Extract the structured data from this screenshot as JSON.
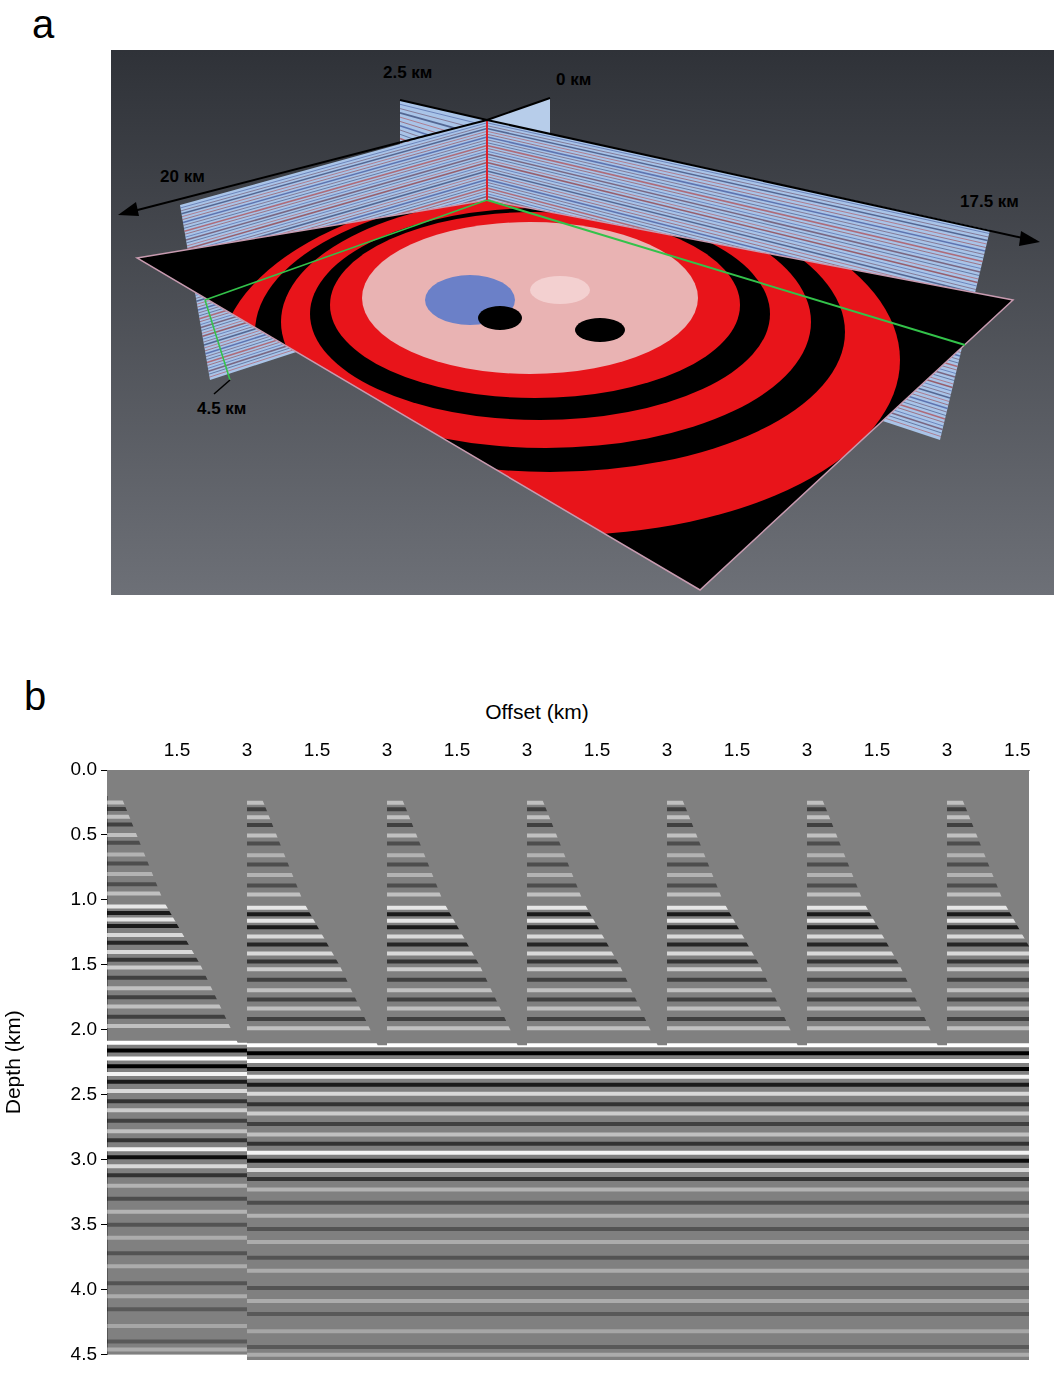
{
  "panel_a": {
    "letter": "a",
    "labels": {
      "back_left": "2.5 км",
      "back_right": "0 км",
      "left_axis": "20 км",
      "right_axis": "17.5 км",
      "depth": "4.5 км"
    }
  },
  "chart_data": {
    "letter": "b",
    "type": "line",
    "x_label": "Offset (km)",
    "y_label": "Depth (km)",
    "ylim": [
      0,
      4.5
    ],
    "yticks": [
      {
        "value": 0,
        "label": "0.0"
      },
      0.5,
      {
        "value": 1,
        "label": "1.0"
      },
      1.5,
      {
        "value": 2,
        "label": "2.0"
      },
      2.5,
      {
        "value": 3,
        "label": "3.0"
      },
      3.5,
      {
        "value": 4,
        "label": "4.0"
      },
      4.5
    ],
    "gathers": [
      {
        "xlim": [
          0,
          3
        ],
        "xticks": [
          1.5,
          3
        ]
      },
      {
        "xlim": [
          0,
          3
        ],
        "xticks": [
          1.5,
          3
        ]
      },
      {
        "xlim": [
          0,
          3
        ],
        "xticks": [
          1.5,
          3
        ]
      },
      {
        "xlim": [
          0,
          3
        ],
        "xticks": [
          1.5,
          3
        ]
      },
      {
        "xlim": [
          0,
          3
        ],
        "xticks": [
          1.5,
          3
        ]
      },
      {
        "xlim": [
          0,
          3
        ],
        "xticks": [
          1.5,
          3
        ]
      },
      {
        "xlim": [
          0,
          1.75
        ],
        "xticks": [
          1.5
        ]
      }
    ],
    "reflectors": {
      "depth": [
        0.25,
        0.3,
        0.36,
        0.42,
        0.5,
        0.56,
        0.65,
        0.72,
        0.8,
        0.88,
        0.95,
        1.05,
        1.1,
        1.15,
        1.2,
        1.27,
        1.33,
        1.4,
        1.46,
        1.52,
        1.6,
        1.68,
        1.75,
        1.82,
        1.9,
        1.97,
        2.1,
        2.16,
        2.22,
        2.28,
        2.34,
        2.4,
        2.47,
        2.55,
        2.62,
        2.7,
        2.78,
        2.85,
        2.92,
        2.98,
        3.05,
        3.12,
        3.2,
        3.3,
        3.4,
        3.5,
        3.6,
        3.72,
        3.82,
        3.95,
        4.05,
        4.15,
        4.28,
        4.4,
        4.46
      ],
      "amplitude": [
        0.5,
        -0.5,
        0.5,
        -0.5,
        0.5,
        -0.4,
        0.4,
        -0.4,
        0.4,
        -0.4,
        0.5,
        0.8,
        -0.8,
        0.8,
        -0.8,
        0.7,
        -0.7,
        0.7,
        -0.6,
        0.6,
        -0.5,
        0.5,
        -0.5,
        0.5,
        -0.5,
        0.5,
        1.0,
        -1.0,
        1.0,
        -1.0,
        0.9,
        -0.8,
        0.7,
        -0.6,
        0.6,
        -0.5,
        0.5,
        -0.6,
        0.9,
        -0.9,
        0.7,
        -0.6,
        0.4,
        -0.4,
        0.4,
        -0.35,
        0.35,
        -0.35,
        0.35,
        -0.35,
        0.35,
        -0.3,
        0.3,
        -0.3,
        0.35
      ]
    },
    "mute": {
      "offset": [
        0,
        0.3,
        1.2,
        2.0,
        2.8,
        3.0
      ],
      "depth": [
        0.2,
        0.2,
        1.0,
        1.5,
        2.1,
        2.1
      ]
    },
    "grid": false
  }
}
